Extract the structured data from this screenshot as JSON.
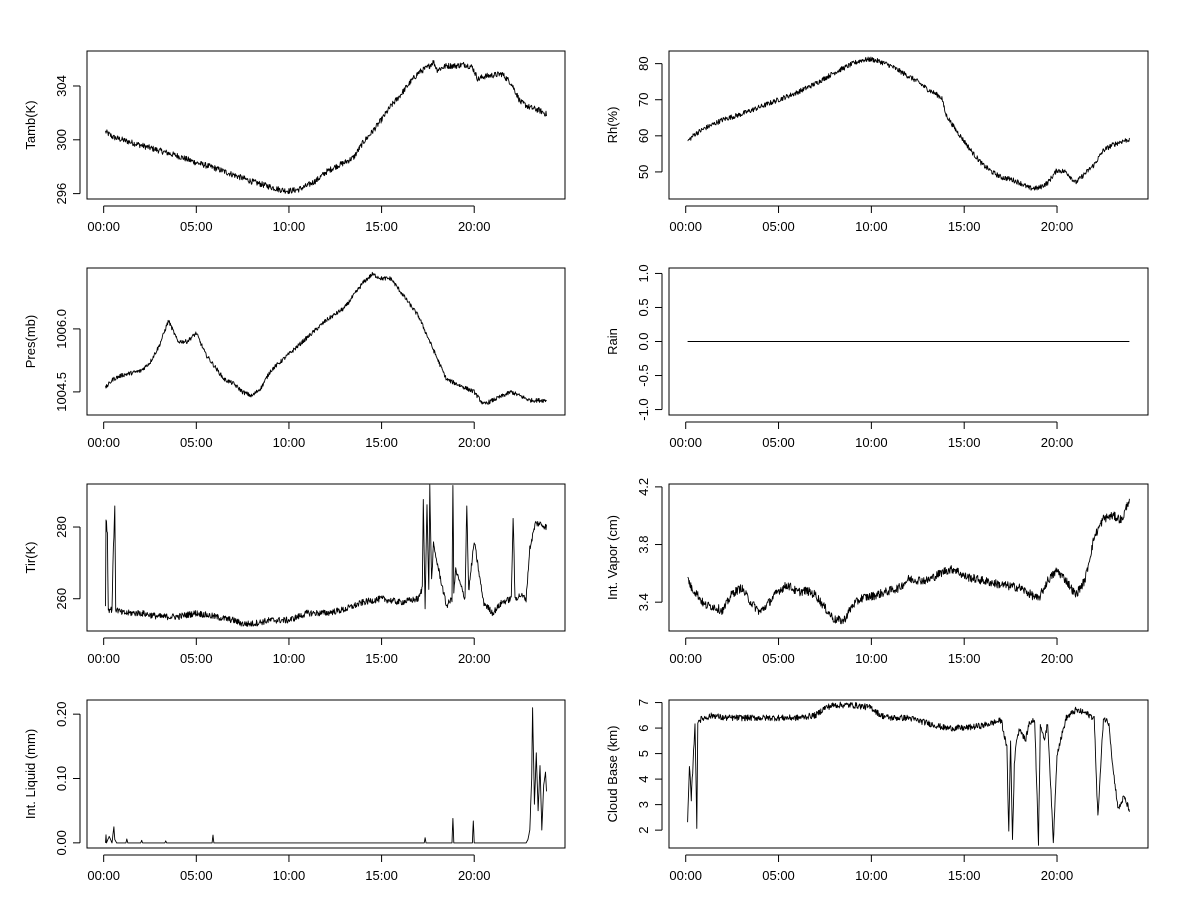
{
  "chart_data": [
    {
      "type": "line",
      "ylabel": "Tamb(K)",
      "xlabel": "",
      "x_ticks": [
        "00:00",
        "05:00",
        "10:00",
        "15:00",
        "20:00"
      ],
      "x_tick_hours": [
        0,
        5,
        10,
        15,
        20
      ],
      "xlim": [
        -0.9,
        24.9
      ],
      "y_ticks": [
        296,
        300,
        304
      ],
      "ylim": [
        295.6,
        306.6
      ],
      "x": [
        0.1,
        0.5,
        1,
        2,
        3,
        4,
        5,
        6,
        7,
        8,
        9,
        9.5,
        10,
        10.5,
        11,
        11.5,
        12,
        12.5,
        13,
        13.5,
        14,
        14.5,
        15,
        15.5,
        16,
        16.5,
        17,
        17.5,
        17.8,
        18,
        18.5,
        19,
        19.5,
        19.9,
        20.2,
        20.5,
        21,
        21.5,
        22,
        22.5,
        23,
        23.5,
        23.9
      ],
      "values": [
        300.6,
        300.2,
        300.0,
        299.6,
        299.2,
        298.8,
        298.3,
        297.9,
        297.4,
        296.9,
        296.5,
        296.3,
        296.2,
        296.3,
        296.6,
        297.0,
        297.6,
        298.0,
        298.3,
        298.7,
        299.8,
        300.6,
        301.5,
        302.5,
        303.3,
        304.2,
        305.0,
        305.4,
        305.8,
        305.2,
        305.5,
        305.5,
        305.6,
        305.4,
        304.5,
        304.7,
        304.8,
        304.9,
        304.2,
        302.8,
        302.4,
        302.2,
        301.9
      ],
      "noise": 0.22
    },
    {
      "type": "line",
      "ylabel": "Rh(%)",
      "xlabel": "",
      "x_ticks": [
        "00:00",
        "05:00",
        "10:00",
        "15:00",
        "20:00"
      ],
      "x_tick_hours": [
        0,
        5,
        10,
        15,
        20
      ],
      "xlim": [
        -0.9,
        24.9
      ],
      "y_ticks": [
        50,
        60,
        70,
        80
      ],
      "ylim": [
        42.5,
        83.5
      ],
      "x": [
        0.1,
        0.5,
        1,
        2,
        3,
        4,
        5,
        6,
        7,
        8,
        9,
        9.5,
        10,
        10.5,
        11,
        11.5,
        12,
        12.5,
        13,
        13.5,
        13.8,
        14,
        14.5,
        15,
        15.5,
        16,
        16.5,
        17,
        17.5,
        18,
        18.5,
        19,
        19.5,
        20,
        20.5,
        21,
        21.5,
        22,
        22.5,
        23,
        23.5,
        23.9
      ],
      "values": [
        58.5,
        60.5,
        62.0,
        64.5,
        66.0,
        68.0,
        70.0,
        72.0,
        74.5,
        77.5,
        80.0,
        81.0,
        81.2,
        80.5,
        79.5,
        78.0,
        76.5,
        75.0,
        73.0,
        71.5,
        70.5,
        66.0,
        62.0,
        58.5,
        55.0,
        52.0,
        50.0,
        48.5,
        48.0,
        47.0,
        45.5,
        45.5,
        47.0,
        50.5,
        50.0,
        47.0,
        49.5,
        52.0,
        56.0,
        57.5,
        58.5,
        59.0
      ],
      "noise": 0.7
    },
    {
      "type": "line",
      "ylabel": "Pres(mb)",
      "xlabel": "",
      "x_ticks": [
        "00:00",
        "05:00",
        "10:00",
        "15:00",
        "20:00"
      ],
      "x_tick_hours": [
        0,
        5,
        10,
        15,
        20
      ],
      "xlim": [
        -0.9,
        24.9
      ],
      "y_ticks": [
        1004.5,
        1006.0
      ],
      "y_tick_labels": [
        "1004.5",
        "1006.0"
      ],
      "ylim": [
        1003.95,
        1007.45
      ],
      "x": [
        0.1,
        0.5,
        1,
        2,
        2.5,
        3,
        3.5,
        4,
        4.5,
        5,
        5.5,
        6,
        6.5,
        7,
        7.5,
        8,
        8.5,
        9,
        10,
        11,
        12,
        13,
        14,
        14.5,
        15,
        15.5,
        16,
        17,
        18,
        18.5,
        19,
        20,
        20.5,
        21,
        22,
        22.5,
        23,
        23.5,
        23.9
      ],
      "values": [
        1004.6,
        1004.8,
        1004.9,
        1005.0,
        1005.2,
        1005.6,
        1006.2,
        1005.7,
        1005.7,
        1005.9,
        1005.4,
        1005.1,
        1004.8,
        1004.7,
        1004.5,
        1004.4,
        1004.6,
        1005.0,
        1005.4,
        1005.8,
        1006.2,
        1006.5,
        1007.1,
        1007.3,
        1007.2,
        1007.2,
        1006.9,
        1006.3,
        1005.3,
        1004.8,
        1004.7,
        1004.5,
        1004.2,
        1004.3,
        1004.5,
        1004.4,
        1004.3,
        1004.3,
        1004.3
      ],
      "noise": 0.05
    },
    {
      "type": "line",
      "ylabel": "Rain",
      "xlabel": "",
      "x_ticks": [
        "00:00",
        "05:00",
        "10:00",
        "15:00",
        "20:00"
      ],
      "x_tick_hours": [
        0,
        5,
        10,
        15,
        20
      ],
      "xlim": [
        -0.9,
        24.9
      ],
      "y_ticks": [
        -1.0,
        -0.5,
        0.0,
        0.5,
        1.0
      ],
      "y_tick_labels": [
        "-1.0",
        "-0.5",
        "0.0",
        "0.5",
        "1.0"
      ],
      "ylim": [
        -1.08,
        1.08
      ],
      "x": [
        0.1,
        23.9
      ],
      "values": [
        0,
        0
      ],
      "noise": 0
    },
    {
      "type": "line",
      "ylabel": "Tir(K)",
      "xlabel": "",
      "x_ticks": [
        "00:00",
        "05:00",
        "10:00",
        "15:00",
        "20:00"
      ],
      "x_tick_hours": [
        0,
        5,
        10,
        15,
        20
      ],
      "xlim": [
        -0.9,
        24.9
      ],
      "y_ticks": [
        260,
        280
      ],
      "ylim": [
        251,
        292
      ],
      "x": [
        0.1,
        0.12,
        0.2,
        0.25,
        0.35,
        0.45,
        0.5,
        0.6,
        0.65,
        0.7,
        1,
        2,
        3,
        4,
        5,
        6,
        7,
        7.5,
        8,
        9,
        10,
        11,
        12,
        13,
        14,
        15,
        16,
        17,
        17.2,
        17.25,
        17.35,
        17.45,
        17.55,
        17.6,
        17.7,
        17.8,
        18,
        18.5,
        18.8,
        18.85,
        18.9,
        19,
        19.5,
        19.6,
        19.7,
        20,
        20.5,
        21,
        21.5,
        22,
        22.1,
        22.2,
        22.5,
        22.8,
        23,
        23.3,
        23.5,
        23.9
      ],
      "values": [
        258,
        283,
        278,
        257,
        257,
        257,
        270,
        285,
        257,
        257,
        256,
        256,
        255,
        255,
        256,
        255,
        254,
        253,
        253,
        254,
        254,
        256,
        256,
        257,
        259,
        260,
        259,
        260,
        263,
        288,
        258,
        286,
        262,
        291,
        265,
        275,
        270,
        258,
        260,
        292,
        262,
        268,
        260,
        286,
        262,
        276,
        259,
        256,
        259,
        260,
        283,
        260,
        261,
        260,
        274,
        281,
        281,
        280
      ],
      "noise": 0.9
    },
    {
      "type": "line",
      "ylabel": "Int. Vapor (cm)",
      "xlabel": "",
      "x_ticks": [
        "00:00",
        "05:00",
        "10:00",
        "15:00",
        "20:00"
      ],
      "x_tick_hours": [
        0,
        5,
        10,
        15,
        20
      ],
      "xlim": [
        -0.9,
        24.9
      ],
      "y_ticks": [
        3.4,
        3.8,
        4.2
      ],
      "y_tick_labels": [
        "3.4",
        "3.8",
        "4.2"
      ],
      "ylim": [
        3.2,
        4.22
      ],
      "x": [
        0.1,
        0.3,
        0.6,
        1,
        1.5,
        2,
        2.5,
        3,
        3.5,
        4,
        4.5,
        5,
        5.5,
        6,
        6.5,
        7,
        7.5,
        8,
        8.5,
        9,
        9.5,
        10,
        10.5,
        11,
        11.5,
        12,
        13,
        14,
        14.5,
        15,
        16,
        17,
        18,
        18.5,
        19,
        19.5,
        20,
        20.5,
        21,
        21.5,
        22,
        22.5,
        23,
        23.5,
        23.9
      ],
      "values": [
        3.57,
        3.5,
        3.46,
        3.38,
        3.37,
        3.34,
        3.46,
        3.5,
        3.4,
        3.33,
        3.4,
        3.48,
        3.52,
        3.47,
        3.48,
        3.45,
        3.36,
        3.28,
        3.27,
        3.38,
        3.43,
        3.44,
        3.46,
        3.48,
        3.5,
        3.56,
        3.55,
        3.62,
        3.63,
        3.58,
        3.55,
        3.52,
        3.5,
        3.46,
        3.42,
        3.55,
        3.62,
        3.55,
        3.45,
        3.55,
        3.85,
        3.98,
        4.0,
        3.97,
        4.12
      ],
      "noise": 0.03
    },
    {
      "type": "line",
      "ylabel": "Int. Liquid (mm)",
      "xlabel": "",
      "x_ticks": [
        "00:00",
        "05:00",
        "10:00",
        "15:00",
        "20:00"
      ],
      "x_tick_hours": [
        0,
        5,
        10,
        15,
        20
      ],
      "xlim": [
        -0.9,
        24.9
      ],
      "y_ticks": [
        0.0,
        0.1,
        0.2
      ],
      "y_tick_labels": [
        "0.00",
        "0.10",
        "0.20"
      ],
      "ylim": [
        -0.008,
        0.222
      ],
      "x": [
        0.1,
        0.12,
        0.15,
        0.3,
        0.45,
        0.55,
        0.6,
        0.7,
        1.2,
        1.25,
        1.3,
        2,
        2.05,
        2.1,
        3.3,
        3.35,
        3.4,
        5.85,
        5.9,
        5.95,
        17.3,
        17.35,
        17.4,
        18.8,
        18.85,
        18.9,
        19.9,
        19.95,
        20,
        22.8,
        22.9,
        23,
        23.1,
        23.15,
        23.25,
        23.35,
        23.45,
        23.55,
        23.65,
        23.75,
        23.85,
        23.9
      ],
      "values": [
        0,
        0.015,
        0.0,
        0.01,
        0.0,
        0.025,
        0.005,
        0.0,
        0.0,
        0.006,
        0.0,
        0.0,
        0.004,
        0.0,
        0.0,
        0.003,
        0.0,
        0.0,
        0.012,
        0.0,
        0.0,
        0.008,
        0.0,
        0.0,
        0.038,
        0.0,
        0.0,
        0.034,
        0.0,
        0.0,
        0.005,
        0.02,
        0.1,
        0.21,
        0.06,
        0.14,
        0.05,
        0.12,
        0.02,
        0.09,
        0.11,
        0.08
      ],
      "noise": 0
    },
    {
      "type": "line",
      "ylabel": "Cloud Base (km)",
      "xlabel": "",
      "x_ticks": [
        "00:00",
        "05:00",
        "10:00",
        "15:00",
        "20:00"
      ],
      "x_tick_hours": [
        0,
        5,
        10,
        15,
        20
      ],
      "xlim": [
        -0.9,
        24.9
      ],
      "y_ticks": [
        2,
        3,
        4,
        5,
        6,
        7
      ],
      "ylim": [
        1.3,
        7.1
      ],
      "x": [
        0.1,
        0.2,
        0.3,
        0.5,
        0.6,
        0.65,
        0.7,
        1,
        1.5,
        2,
        3,
        4,
        5,
        6,
        7,
        7.5,
        8,
        9,
        10,
        10.5,
        11,
        12,
        13,
        14,
        15,
        16,
        16.5,
        17,
        17.3,
        17.4,
        17.5,
        17.6,
        17.7,
        17.8,
        18,
        18.3,
        18.5,
        18.8,
        19,
        19.1,
        19.3,
        19.5,
        19.8,
        20,
        20.5,
        21,
        21.5,
        22,
        22.2,
        22.5,
        22.8,
        23,
        23.3,
        23.6,
        23.9
      ],
      "values": [
        2.2,
        4.5,
        3.2,
        6.2,
        2.0,
        6.3,
        6.3,
        6.4,
        6.5,
        6.4,
        6.4,
        6.4,
        6.4,
        6.4,
        6.5,
        6.8,
        6.9,
        6.9,
        6.8,
        6.5,
        6.4,
        6.4,
        6.2,
        6.0,
        6.0,
        6.1,
        6.2,
        6.3,
        5.2,
        1.9,
        5.5,
        1.6,
        4.5,
        5.5,
        6.0,
        5.5,
        6.2,
        6.3,
        1.5,
        6.2,
        5.5,
        6.2,
        1.5,
        5.0,
        6.4,
        6.7,
        6.6,
        6.4,
        2.5,
        6.4,
        6.2,
        4.5,
        2.8,
        3.3,
        2.8
      ],
      "noise": 0.12
    }
  ]
}
